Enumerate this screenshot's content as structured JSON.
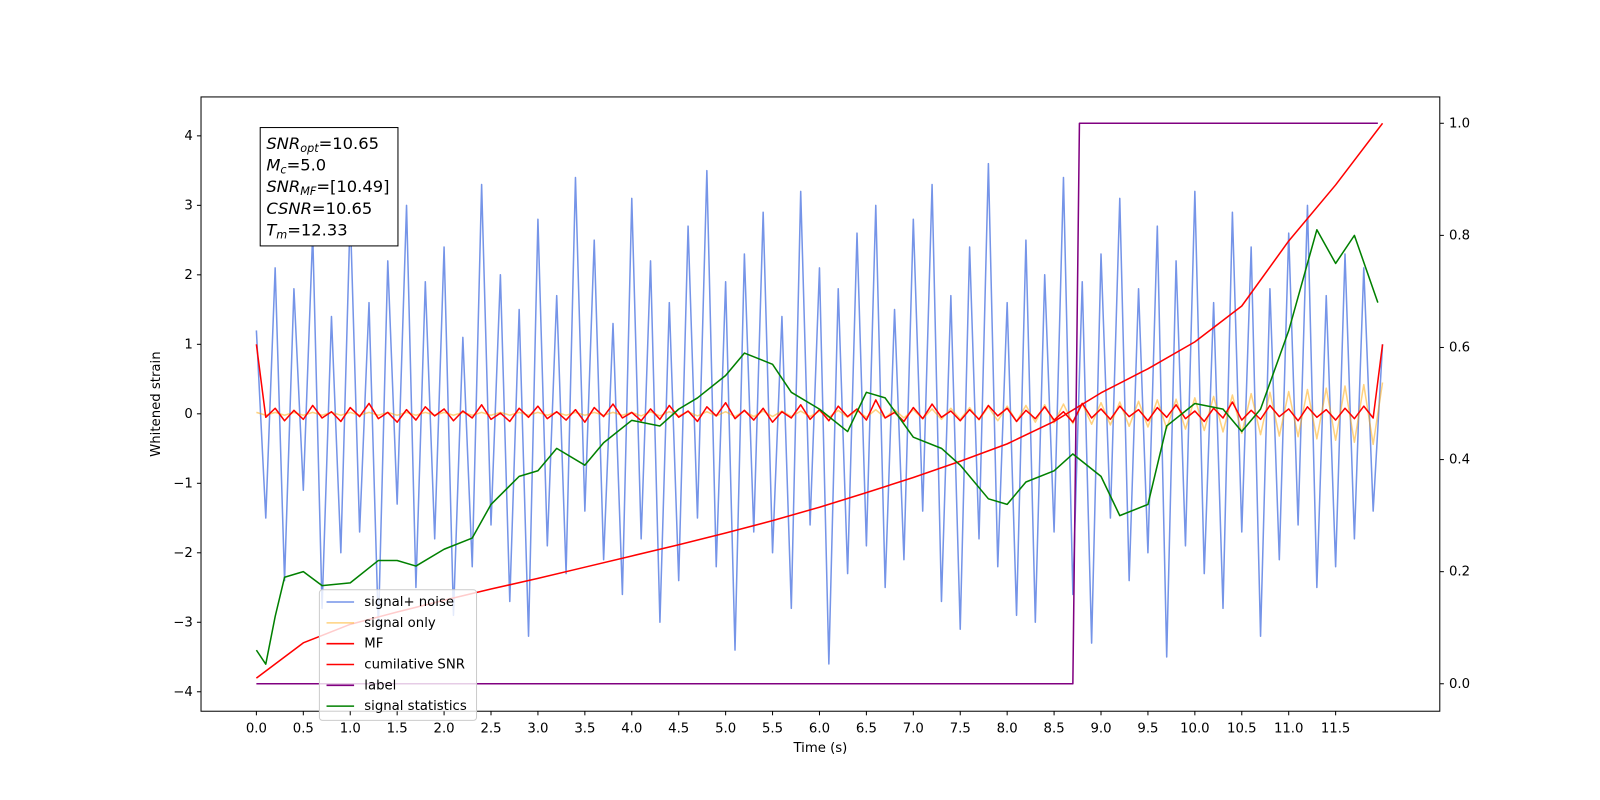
{
  "chart_data": {
    "type": "line",
    "xlabel": "Time (s)",
    "ylabel": "Whitened strain",
    "annotations": [
      [
        "SNR",
        "opt",
        "=10.65"
      ],
      [
        "M",
        "c",
        "=5.0"
      ],
      [
        "SNR",
        "MF",
        "=[10.49]"
      ],
      [
        "CSNR",
        "=10.65"
      ],
      [
        "T",
        "m",
        "=12.33"
      ]
    ],
    "xlim": [
      -0.59,
      12.61
    ],
    "ylim": [
      -4.28,
      4.56
    ],
    "y2lim": [
      -0.049,
      1.047
    ],
    "xticks": [
      {
        "value": 0,
        "label": "0.0"
      },
      0.5,
      {
        "value": 1,
        "label": "1.0"
      },
      1.5,
      {
        "value": 2,
        "label": "2.0"
      },
      2.5,
      {
        "value": 3,
        "label": "3.0"
      },
      3.5,
      {
        "value": 4,
        "label": "4.0"
      },
      4.5,
      {
        "value": 5,
        "label": "5.0"
      },
      5.5,
      {
        "value": 6,
        "label": "6.0"
      },
      6.5,
      {
        "value": 7,
        "label": "7.0"
      },
      7.5,
      {
        "value": 8,
        "label": "8.0"
      },
      8.5,
      {
        "value": 9,
        "label": "9.0"
      },
      9.5,
      {
        "value": 10,
        "label": "10.0"
      },
      10.5,
      {
        "value": 11,
        "label": "11.0"
      },
      11.5
    ],
    "yticks": [
      {
        "value": -4,
        "label": "−4"
      },
      {
        "value": -3,
        "label": "−3"
      },
      {
        "value": -2,
        "label": "−2"
      },
      {
        "value": -1,
        "label": "−1"
      },
      0,
      1,
      2,
      3,
      4
    ],
    "y2ticks": [
      {
        "value": 0,
        "label": "0.0"
      },
      0.2,
      0.4,
      0.6,
      0.8,
      {
        "value": 1,
        "label": "1.0"
      }
    ],
    "x": [
      0,
      0.1,
      0.2,
      0.3,
      0.4,
      0.5,
      0.6,
      0.7,
      0.8,
      0.9,
      1,
      1.1,
      1.2,
      1.3,
      1.4,
      1.5,
      1.6,
      1.7,
      1.8,
      1.9,
      2,
      2.1,
      2.2,
      2.3,
      2.4,
      2.5,
      2.6,
      2.7,
      2.8,
      2.9,
      3,
      3.1,
      3.2,
      3.3,
      3.4,
      3.5,
      3.6,
      3.7,
      3.8,
      3.9,
      4,
      4.1,
      4.2,
      4.3,
      4.4,
      4.5,
      4.6,
      4.7,
      4.8,
      4.9,
      5,
      5.1,
      5.2,
      5.3,
      5.4,
      5.5,
      5.6,
      5.7,
      5.8,
      5.9,
      6,
      6.1,
      6.2,
      6.3,
      6.4,
      6.5,
      6.6,
      6.7,
      6.8,
      6.9,
      7,
      7.1,
      7.2,
      7.3,
      7.4,
      7.5,
      7.6,
      7.7,
      7.8,
      7.9,
      8,
      8.1,
      8.2,
      8.3,
      8.4,
      8.5,
      8.6,
      8.7,
      8.8,
      8.9,
      9,
      9.1,
      9.2,
      9.3,
      9.4,
      9.5,
      9.6,
      9.7,
      9.8,
      9.9,
      10,
      10.1,
      10.2,
      10.3,
      10.4,
      10.5,
      10.6,
      10.7,
      10.8,
      10.9,
      11,
      11.1,
      11.2,
      11.3,
      11.4,
      11.5,
      11.6,
      11.7,
      11.8,
      11.9,
      12
    ],
    "series": [
      {
        "name": "signal+ noise",
        "color": "#7594e8",
        "values": [
          1.2,
          -1.5,
          2.1,
          -2.4,
          1.8,
          -1.1,
          2.6,
          -2.8,
          1.4,
          -2.0,
          2.9,
          -1.7,
          1.6,
          -3.1,
          2.2,
          -1.3,
          3.0,
          -2.5,
          1.9,
          -1.8,
          2.4,
          -2.9,
          1.1,
          -2.2,
          3.3,
          -1.6,
          2.0,
          -2.7,
          1.5,
          -3.2,
          2.8,
          -1.9,
          1.7,
          -2.3,
          3.4,
          -1.4,
          2.5,
          -2.1,
          1.3,
          -2.6,
          3.1,
          -1.8,
          2.2,
          -3.0,
          1.6,
          -2.4,
          2.7,
          -1.5,
          3.5,
          -2.2,
          1.9,
          -3.4,
          2.3,
          -1.7,
          2.9,
          -2.0,
          1.4,
          -2.8,
          3.2,
          -1.6,
          2.1,
          -3.6,
          1.8,
          -2.3,
          2.6,
          -1.9,
          3.0,
          -2.5,
          1.5,
          -2.1,
          2.8,
          -1.4,
          3.3,
          -2.7,
          1.7,
          -3.1,
          2.4,
          -1.8,
          3.6,
          -2.2,
          1.6,
          -2.9,
          2.5,
          -3.0,
          2.0,
          -1.7,
          3.4,
          -2.6,
          1.9,
          -3.3,
          2.3,
          -1.5,
          3.1,
          -2.4,
          1.8,
          -2.0,
          2.7,
          -3.5,
          2.2,
          -1.9,
          3.2,
          -2.3,
          1.6,
          -2.8,
          2.9,
          -1.7,
          2.4,
          -3.2,
          1.8,
          -2.1,
          2.6,
          -1.6,
          3.0,
          -2.5,
          1.7,
          -2.2,
          2.3,
          -1.8,
          2.1,
          -1.4,
          1.0
        ]
      },
      {
        "name": "signal only",
        "color": "#ffa500",
        "opacity": 0.5,
        "values": [
          0.02,
          -0.02,
          0.02,
          -0.02,
          0.02,
          -0.02,
          0.02,
          -0.02,
          0.02,
          -0.02,
          0.02,
          -0.02,
          0.02,
          -0.02,
          0.02,
          -0.02,
          0.02,
          -0.02,
          0.02,
          -0.02,
          0.02,
          -0.02,
          0.02,
          -0.02,
          0.02,
          -0.02,
          0.02,
          -0.02,
          0.02,
          -0.02,
          0.02,
          -0.02,
          0.02,
          -0.02,
          0.02,
          -0.02,
          0.02,
          -0.02,
          0.02,
          -0.02,
          0.02,
          -0.03,
          0.03,
          -0.03,
          0.03,
          -0.03,
          0.03,
          -0.03,
          0.03,
          -0.03,
          0.03,
          -0.04,
          0.04,
          -0.04,
          0.04,
          -0.04,
          0.04,
          -0.04,
          0.04,
          -0.04,
          0.04,
          -0.05,
          0.05,
          -0.05,
          0.05,
          -0.05,
          0.06,
          -0.06,
          0.06,
          -0.06,
          0.06,
          -0.07,
          0.07,
          -0.08,
          0.08,
          -0.08,
          0.09,
          -0.09,
          0.1,
          -0.1,
          0.11,
          -0.11,
          0.12,
          -0.12,
          0.13,
          -0.13,
          0.14,
          -0.14,
          0.15,
          -0.15,
          0.16,
          -0.16,
          0.17,
          -0.18,
          0.18,
          -0.19,
          0.2,
          -0.21,
          0.21,
          -0.22,
          0.23,
          -0.24,
          0.25,
          -0.26,
          0.27,
          -0.28,
          0.29,
          -0.3,
          0.31,
          -0.32,
          0.32,
          -0.33,
          0.35,
          -0.36,
          0.37,
          -0.38,
          0.4,
          -0.41,
          0.42,
          -0.44,
          0.45
        ]
      },
      {
        "name": "MF",
        "color": "#ff0000",
        "values": [
          1.0,
          -0.05,
          0.08,
          -0.1,
          0.05,
          -0.08,
          0.12,
          -0.06,
          0.03,
          -0.11,
          0.09,
          -0.04,
          0.15,
          -0.07,
          0.02,
          -0.12,
          0.06,
          -0.09,
          0.1,
          -0.03,
          0.07,
          -0.1,
          0.04,
          -0.06,
          0.13,
          -0.08,
          0.01,
          -0.11,
          0.08,
          -0.05,
          0.11,
          -0.07,
          0.03,
          -0.09,
          0.06,
          -0.12,
          0.09,
          -0.04,
          0.14,
          -0.06,
          0.02,
          -0.1,
          0.07,
          -0.08,
          0.12,
          -0.05,
          0.04,
          -0.11,
          0.1,
          -0.03,
          0.16,
          -0.07,
          0.05,
          -0.09,
          0.08,
          -0.12,
          0.03,
          -0.06,
          0.13,
          -0.08,
          0.06,
          -0.1,
          0.11,
          -0.04,
          0.07,
          -0.09,
          0.2,
          -0.06,
          0.02,
          -0.11,
          0.09,
          -0.07,
          0.14,
          -0.05,
          0.04,
          -0.1,
          0.06,
          -0.08,
          0.12,
          -0.03,
          0.08,
          -0.11,
          0.05,
          -0.07,
          0.1,
          -0.09,
          0.03,
          -0.12,
          0.15,
          -0.06,
          0.07,
          -0.08,
          0.11,
          -0.04,
          0.06,
          -0.1,
          0.09,
          -0.05,
          0.13,
          -0.07,
          0.04,
          -0.11,
          0.08,
          -0.06,
          0.17,
          -0.09,
          0.05,
          -0.08,
          0.12,
          -0.04,
          0.07,
          -0.1,
          0.1,
          -0.05,
          0.06,
          -0.09,
          0.08,
          -0.07,
          0.11,
          -0.06,
          1.0
        ]
      },
      {
        "name": "cumilative SNR",
        "color": "#ff0000",
        "axis": "y2",
        "x": [
          0,
          0.5,
          1,
          1.5,
          2,
          2.5,
          3,
          3.5,
          4,
          4.5,
          5,
          5.5,
          6,
          6.5,
          7,
          7.5,
          8,
          8.5,
          9,
          9.5,
          10,
          10.5,
          11,
          11.5,
          12
        ],
        "values": [
          0.01,
          0.073,
          0.106,
          0.128,
          0.149,
          0.169,
          0.188,
          0.208,
          0.228,
          0.248,
          0.269,
          0.291,
          0.315,
          0.341,
          0.368,
          0.397,
          0.428,
          0.468,
          0.519,
          0.562,
          0.61,
          0.674,
          0.79,
          0.89,
          1.0
        ]
      },
      {
        "name": "label",
        "color": "#800080",
        "axis": "y2",
        "x": [
          0,
          8.7,
          8.77,
          11.95
        ],
        "values": [
          0,
          0,
          1,
          1
        ]
      },
      {
        "name": "signal statistics",
        "color": "#008000",
        "axis": "y2",
        "x": [
          0,
          0.1,
          0.2,
          0.3,
          0.5,
          0.7,
          1,
          1.3,
          1.5,
          1.7,
          2,
          2.3,
          2.5,
          2.8,
          3,
          3.2,
          3.5,
          3.7,
          4,
          4.3,
          4.5,
          4.7,
          5,
          5.2,
          5.5,
          5.7,
          6,
          6.3,
          6.5,
          6.7,
          7,
          7.3,
          7.5,
          7.8,
          8,
          8.2,
          8.5,
          8.7,
          9,
          9.2,
          9.5,
          9.7,
          10,
          10.3,
          10.5,
          10.7,
          11,
          11.3,
          11.5,
          11.7,
          11.95
        ],
        "values": [
          0.06,
          0.035,
          0.12,
          0.19,
          0.2,
          0.175,
          0.18,
          0.22,
          0.22,
          0.21,
          0.24,
          0.26,
          0.32,
          0.37,
          0.38,
          0.42,
          0.39,
          0.43,
          0.47,
          0.46,
          0.49,
          0.51,
          0.55,
          0.59,
          0.57,
          0.52,
          0.49,
          0.45,
          0.52,
          0.51,
          0.44,
          0.42,
          0.39,
          0.33,
          0.32,
          0.36,
          0.38,
          0.41,
          0.37,
          0.3,
          0.32,
          0.46,
          0.5,
          0.49,
          0.45,
          0.49,
          0.63,
          0.81,
          0.75,
          0.8,
          0.68
        ]
      }
    ]
  }
}
